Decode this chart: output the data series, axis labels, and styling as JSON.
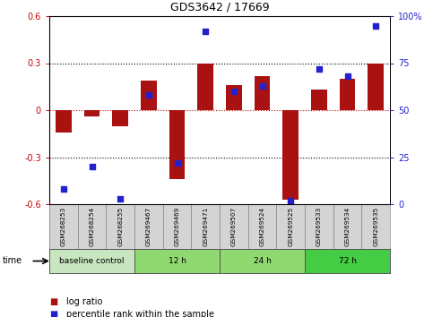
{
  "title": "GDS3642 / 17669",
  "samples": [
    "GSM268253",
    "GSM268254",
    "GSM268255",
    "GSM269467",
    "GSM269469",
    "GSM269471",
    "GSM269507",
    "GSM269524",
    "GSM269525",
    "GSM269533",
    "GSM269534",
    "GSM269535"
  ],
  "log_ratio": [
    -0.14,
    -0.04,
    -0.1,
    0.19,
    -0.44,
    0.3,
    0.16,
    0.22,
    -0.57,
    0.13,
    0.2,
    0.3
  ],
  "percentile_rank": [
    8,
    20,
    3,
    58,
    22,
    92,
    60,
    63,
    2,
    72,
    68,
    95
  ],
  "bar_color": "#aa1111",
  "dot_color": "#2222cc",
  "ylim_left": [
    -0.6,
    0.6
  ],
  "ylim_right": [
    0,
    100
  ],
  "yticks_left": [
    -0.6,
    -0.3,
    0.0,
    0.3,
    0.6
  ],
  "yticks_right": [
    0,
    25,
    50,
    75,
    100
  ],
  "hlines": [
    -0.3,
    0.3
  ],
  "zero_line": 0.0,
  "group_data": [
    {
      "label": "baseline control",
      "start": 0,
      "end": 3,
      "color": "#c8e6c0"
    },
    {
      "label": "12 h",
      "start": 3,
      "end": 6,
      "color": "#90d870"
    },
    {
      "label": "24 h",
      "start": 6,
      "end": 9,
      "color": "#90d870"
    },
    {
      "label": "72 h",
      "start": 9,
      "end": 12,
      "color": "#44cc44"
    }
  ],
  "legend_items": [
    {
      "label": "log ratio",
      "color": "#aa1111"
    },
    {
      "label": "percentile rank within the sample",
      "color": "#2222cc"
    }
  ]
}
